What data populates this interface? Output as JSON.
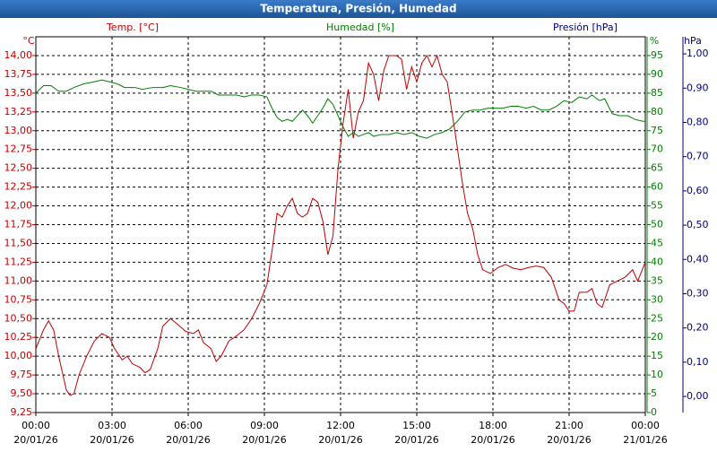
{
  "chart_data": {
    "type": "line",
    "title": "Temperatura, Presión, Humedad",
    "y_label": "Temp. [°C]",
    "y2_label": "Humedad [%]",
    "y3_label": "Presión [hPa]",
    "y_unit": "°C",
    "y2_unit": "%",
    "y3_unit": "hPa",
    "y_color": "#c00000",
    "y2_color": "#008000",
    "y3_color": "#000080",
    "grid": true,
    "xlim": [
      0,
      24
    ],
    "xticks": [
      {
        "value": 0,
        "label": "00:00"
      },
      {
        "value": 3,
        "label": "03:00"
      },
      {
        "value": 6,
        "label": "06:00"
      },
      {
        "value": 9,
        "label": "09:00"
      },
      {
        "value": 12,
        "label": "12:00"
      },
      {
        "value": 15,
        "label": "15:00"
      },
      {
        "value": 18,
        "label": "18:00"
      },
      {
        "value": 21,
        "label": "21:00"
      },
      {
        "value": 24,
        "label": "00:00"
      }
    ],
    "xtick_dates": [
      "20/01/26",
      "20/01/26",
      "20/01/26",
      "20/01/26",
      "20/01/26",
      "20/01/26",
      "20/01/26",
      "20/01/26",
      "21/01/26"
    ],
    "ylim": [
      9.25,
      14.25
    ],
    "yticks": [
      {
        "value": 9.25,
        "label": "9,25"
      },
      {
        "value": 9.5,
        "label": "9,50"
      },
      {
        "value": 9.75,
        "label": "9,75"
      },
      {
        "value": 10,
        "label": "10,00"
      },
      {
        "value": 10.25,
        "label": "10,25"
      },
      {
        "value": 10.5,
        "label": "10,50"
      },
      {
        "value": 10.75,
        "label": "10,75"
      },
      {
        "value": 11,
        "label": "11,00"
      },
      {
        "value": 11.25,
        "label": "11,25"
      },
      {
        "value": 11.5,
        "label": "11,50"
      },
      {
        "value": 11.75,
        "label": "11,75"
      },
      {
        "value": 12,
        "label": "12,00"
      },
      {
        "value": 12.25,
        "label": "12,25"
      },
      {
        "value": 12.5,
        "label": "12,50"
      },
      {
        "value": 12.75,
        "label": "12,75"
      },
      {
        "value": 13,
        "label": "13,00"
      },
      {
        "value": 13.25,
        "label": "13,25"
      },
      {
        "value": 13.5,
        "label": "13,50"
      },
      {
        "value": 13.75,
        "label": "13,75"
      },
      {
        "value": 14,
        "label": "14,00"
      }
    ],
    "y2lim": [
      0,
      100
    ],
    "y2ticks": [
      0,
      5,
      10,
      15,
      20,
      25,
      30,
      35,
      40,
      45,
      50,
      55,
      60,
      65,
      70,
      75,
      80,
      85,
      90,
      95
    ],
    "y3lim": [
      -0.047,
      1.05
    ],
    "y3ticks": [
      {
        "value": 0,
        "label": "0,00"
      },
      {
        "value": 0.1,
        "label": "0,10"
      },
      {
        "value": 0.2,
        "label": "0,20"
      },
      {
        "value": 0.3,
        "label": "0,30"
      },
      {
        "value": 0.4,
        "label": "0,40"
      },
      {
        "value": 0.5,
        "label": "0,50"
      },
      {
        "value": 0.6,
        "label": "0,60"
      },
      {
        "value": 0.7,
        "label": "0,70"
      },
      {
        "value": 0.8,
        "label": "0,80"
      },
      {
        "value": 0.9,
        "label": "0,90"
      },
      {
        "value": 1,
        "label": "1,00"
      }
    ],
    "series": [
      {
        "name": "Temp. [°C]",
        "color": "#c00000",
        "axis": "y",
        "x": [
          0,
          0.3,
          0.5,
          0.7,
          0.9,
          1.1,
          1.2,
          1.35,
          1.5,
          1.7,
          2.0,
          2.3,
          2.6,
          2.9,
          3.1,
          3.4,
          3.6,
          3.8,
          4.1,
          4.3,
          4.5,
          4.8,
          5.0,
          5.3,
          5.6,
          5.9,
          6.2,
          6.4,
          6.6,
          6.9,
          7.1,
          7.3,
          7.6,
          7.9,
          8.2,
          8.5,
          8.8,
          9.1,
          9.3,
          9.5,
          9.7,
          9.9,
          10.1,
          10.3,
          10.5,
          10.7,
          10.9,
          11.1,
          11.3,
          11.5,
          11.7,
          11.9,
          12.1,
          12.3,
          12.5,
          12.7,
          12.9,
          13.1,
          13.3,
          13.5,
          13.7,
          13.9,
          14.2,
          14.4,
          14.6,
          14.8,
          15.0,
          15.2,
          15.4,
          15.6,
          15.8,
          16.0,
          16.2,
          16.5,
          16.8,
          17.0,
          17.2,
          17.4,
          17.6,
          17.9,
          18.2,
          18.5,
          18.8,
          19.1,
          19.4,
          19.7,
          20.0,
          20.3,
          20.6,
          20.8,
          21.0,
          21.2,
          21.4,
          21.7,
          21.9,
          22.1,
          22.3,
          22.6,
          22.9,
          23.2,
          23.5,
          23.7,
          24.0
        ],
        "values": [
          10.1,
          10.35,
          10.47,
          10.35,
          10.0,
          9.7,
          9.55,
          9.48,
          9.5,
          9.75,
          10.0,
          10.2,
          10.3,
          10.25,
          10.1,
          9.95,
          10.0,
          9.9,
          9.85,
          9.78,
          9.82,
          10.1,
          10.4,
          10.5,
          10.42,
          10.33,
          10.3,
          10.35,
          10.18,
          10.1,
          9.93,
          10.0,
          10.2,
          10.27,
          10.35,
          10.5,
          10.7,
          10.95,
          11.4,
          11.9,
          11.85,
          12.0,
          12.1,
          11.9,
          11.85,
          11.9,
          12.1,
          12.05,
          11.8,
          11.35,
          11.6,
          12.5,
          13.1,
          13.55,
          12.9,
          13.25,
          13.4,
          13.9,
          13.75,
          13.4,
          13.8,
          14.0,
          14.0,
          13.95,
          13.55,
          13.85,
          13.65,
          13.9,
          14.0,
          13.85,
          14.0,
          13.75,
          13.65,
          13.0,
          12.3,
          11.9,
          11.7,
          11.35,
          11.15,
          11.1,
          11.18,
          11.22,
          11.17,
          11.15,
          11.18,
          11.2,
          11.18,
          11.05,
          10.75,
          10.7,
          10.6,
          10.6,
          10.85,
          10.85,
          10.9,
          10.7,
          10.65,
          10.95,
          11.0,
          11.05,
          11.15,
          11.0,
          11.25
        ]
      },
      {
        "name": "Humedad [%]",
        "color": "#008000",
        "axis": "y2",
        "x": [
          0,
          0.3,
          0.6,
          0.9,
          1.2,
          1.5,
          1.9,
          2.3,
          2.6,
          2.9,
          3.2,
          3.5,
          3.9,
          4.2,
          4.6,
          5.0,
          5.3,
          5.7,
          6.0,
          6.3,
          6.6,
          6.9,
          7.2,
          7.6,
          7.9,
          8.2,
          8.5,
          8.8,
          9.1,
          9.3,
          9.5,
          9.7,
          9.9,
          10.1,
          10.3,
          10.5,
          10.7,
          10.9,
          11.1,
          11.3,
          11.5,
          11.7,
          11.9,
          12.1,
          12.3,
          12.5,
          12.7,
          12.9,
          13.1,
          13.3,
          13.6,
          13.9,
          14.2,
          14.5,
          14.8,
          15.1,
          15.4,
          15.7,
          16.0,
          16.3,
          16.6,
          16.9,
          17.2,
          17.5,
          17.8,
          18.1,
          18.4,
          18.7,
          19.0,
          19.3,
          19.6,
          19.9,
          20.2,
          20.5,
          20.8,
          21.1,
          21.4,
          21.7,
          21.9,
          22.2,
          22.4,
          22.7,
          23.0,
          23.3,
          23.6,
          23.9,
          24.0
        ],
        "values": [
          85,
          87,
          87,
          85.5,
          85.5,
          86.5,
          87.5,
          88,
          88.5,
          88,
          87.5,
          86.5,
          86.5,
          86,
          86.5,
          86.5,
          87,
          86.5,
          86,
          85.5,
          85.5,
          85.5,
          84.5,
          84.5,
          84.5,
          84,
          84.5,
          84.5,
          84,
          81,
          78.5,
          77.5,
          78,
          77.5,
          79,
          80.5,
          79,
          77,
          79,
          81,
          83.5,
          82,
          79,
          76,
          73.5,
          74.5,
          73.5,
          74,
          74.5,
          73.5,
          74,
          74,
          74.5,
          74,
          74.5,
          73.5,
          73,
          74,
          74.5,
          75.5,
          77.5,
          80,
          80.5,
          80.5,
          81,
          81,
          81,
          81.5,
          81.5,
          81,
          81.5,
          80.5,
          80.5,
          81.5,
          83,
          82.5,
          84,
          83.5,
          84.5,
          83,
          83.5,
          79.5,
          79,
          79,
          78,
          77.5,
          77.5
        ]
      }
    ]
  }
}
